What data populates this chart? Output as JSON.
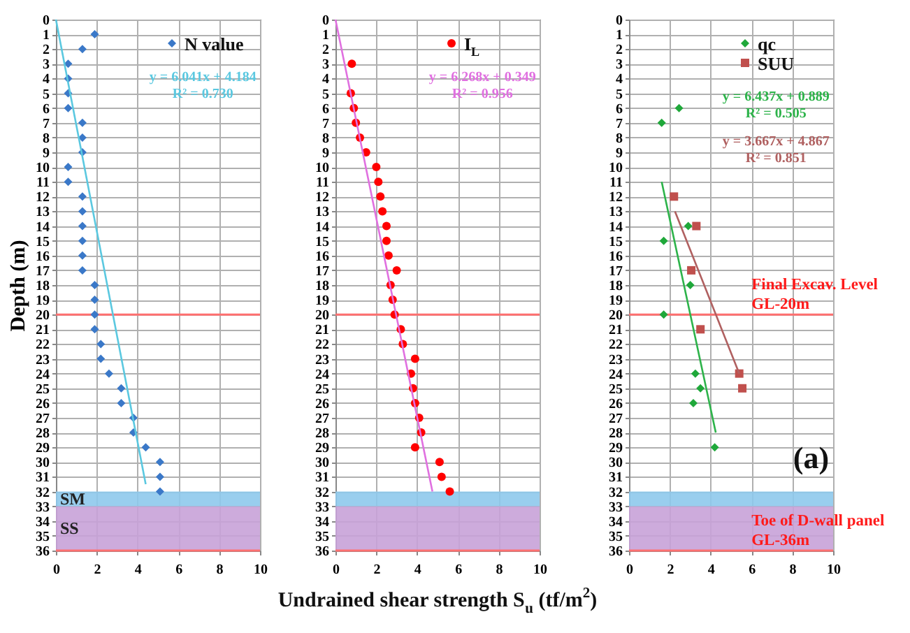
{
  "chart_data": [
    {
      "type": "scatter",
      "ylabel": "Depth (m)",
      "xlim": [
        0,
        10
      ],
      "xticks": [
        0,
        2,
        4,
        6,
        8,
        10
      ],
      "ylim": [
        36,
        0
      ],
      "yticks": [
        0,
        1,
        2,
        3,
        4,
        5,
        6,
        7,
        8,
        9,
        10,
        11,
        12,
        13,
        14,
        15,
        16,
        17,
        18,
        19,
        20,
        21,
        22,
        23,
        24,
        25,
        26,
        27,
        28,
        29,
        30,
        31,
        32,
        33,
        34,
        35,
        36
      ],
      "grid": true,
      "legend": "top right",
      "series": [
        {
          "name": "N value",
          "marker": "diamond",
          "color": "#3a78c8",
          "x": [
            1.9,
            1.3,
            0.6,
            0.6,
            0.6,
            0.6,
            1.3,
            1.3,
            1.3,
            0.6,
            0.6,
            1.3,
            1.3,
            1.3,
            1.3,
            1.3,
            1.3,
            1.9,
            1.9,
            1.9,
            1.9,
            2.2,
            2.2,
            2.6,
            3.2,
            3.2,
            3.8,
            3.8,
            4.4,
            5.1,
            5.1,
            5.1
          ],
          "values": [
            1,
            2,
            3,
            4,
            5,
            6,
            7,
            8,
            9,
            10,
            11,
            12,
            13,
            14,
            15,
            16,
            17,
            18,
            19,
            20,
            21,
            22,
            23,
            24,
            25,
            26,
            27,
            28,
            29,
            30,
            31,
            32
          ]
        },
        {
          "type": "line",
          "marker": "none",
          "color": "#5bc8e0",
          "x": [
            0,
            4.4
          ],
          "values": [
            0,
            31.5
          ]
        }
      ],
      "bands": [
        {
          "axis": "y",
          "from": 32,
          "to": 33,
          "label": "SM",
          "color": "#8ec9ec"
        },
        {
          "axis": "y",
          "from": 33,
          "to": 36,
          "label": "SS",
          "color": "#c8a2d8"
        }
      ],
      "ref_lines": [
        {
          "axis": "y",
          "value": 20,
          "color": "#ff7070"
        },
        {
          "axis": "y",
          "value": 36,
          "color": "#ff7070"
        }
      ],
      "annotations": [
        "y = 6.041x + 4.184",
        "R² = 0.730"
      ]
    },
    {
      "type": "scatter",
      "xlabel": "Undrained shear strength S$_{u}$ (tf/m$^{2}$)",
      "xlim": [
        0,
        10
      ],
      "xticks": [
        0,
        2,
        4,
        6,
        8,
        10
      ],
      "ylim": [
        36,
        0
      ],
      "yticks": [
        0,
        1,
        2,
        3,
        4,
        5,
        6,
        7,
        8,
        9,
        10,
        11,
        12,
        13,
        14,
        15,
        16,
        17,
        18,
        19,
        20,
        21,
        22,
        23,
        24,
        25,
        26,
        27,
        28,
        29,
        30,
        31,
        32,
        33,
        34,
        35,
        36
      ],
      "grid": true,
      "legend": "top right",
      "series": [
        {
          "name": "I$_{L}$",
          "marker": "circle",
          "color": "#ff0000",
          "x": [
            0.8,
            0.75,
            0.9,
            1.0,
            1.2,
            1.5,
            2.0,
            2.1,
            2.2,
            2.3,
            2.5,
            2.5,
            2.6,
            3.0,
            2.7,
            2.8,
            2.9,
            3.2,
            3.3,
            3.9,
            3.7,
            3.8,
            3.9,
            4.1,
            4.2,
            3.9,
            5.1,
            5.2,
            5.6
          ],
          "values": [
            3,
            5,
            6,
            7,
            8,
            9,
            10,
            11,
            12,
            13,
            14,
            15,
            16,
            17,
            18,
            19,
            20,
            21,
            22,
            23,
            24,
            25,
            26,
            27,
            28,
            29,
            30,
            31,
            32
          ]
        },
        {
          "type": "line",
          "marker": "none",
          "color": "#e070e0",
          "x": [
            0,
            4.75
          ],
          "values": [
            0,
            32
          ]
        }
      ],
      "bands": [
        {
          "axis": "y",
          "from": 32,
          "to": 33,
          "color": "#8ec9ec"
        },
        {
          "axis": "y",
          "from": 33,
          "to": 36,
          "color": "#c8a2d8"
        }
      ],
      "ref_lines": [
        {
          "axis": "y",
          "value": 20,
          "color": "#ff7070"
        },
        {
          "axis": "y",
          "value": 36,
          "color": "#ff7070"
        }
      ],
      "annotations": [
        "y = 6.268x + 0.349",
        "R² = 0.956"
      ]
    },
    {
      "type": "scatter",
      "xlim": [
        0,
        10
      ],
      "xticks": [
        0,
        2,
        4,
        6,
        8,
        10
      ],
      "ylim": [
        36,
        0
      ],
      "yticks": [
        0,
        1,
        2,
        3,
        4,
        5,
        6,
        7,
        8,
        9,
        10,
        11,
        12,
        13,
        14,
        15,
        16,
        17,
        18,
        19,
        20,
        21,
        22,
        23,
        24,
        25,
        26,
        27,
        28,
        29,
        30,
        31,
        32,
        33,
        34,
        35,
        36
      ],
      "grid": true,
      "legend": "top right",
      "series": [
        {
          "name": "qc",
          "marker": "diamond",
          "color": "#1fa83a",
          "x": [
            2.45,
            1.6,
            2.9,
            1.7,
            3.0,
            1.7,
            3.25,
            3.5,
            3.15,
            4.2
          ],
          "values": [
            6,
            7,
            14,
            15,
            18,
            20,
            24,
            25,
            26,
            29
          ]
        },
        {
          "name": "SUU",
          "marker": "square",
          "color": "#c0504d",
          "x": [
            2.2,
            3.3,
            3.05,
            3.5,
            5.4,
            5.55
          ],
          "values": [
            12,
            14,
            17,
            21,
            24,
            25
          ]
        },
        {
          "type": "line",
          "marker": "none",
          "color": "#2db34a",
          "x": [
            1.6,
            4.25
          ],
          "values": [
            11,
            28
          ]
        },
        {
          "type": "line",
          "marker": "none",
          "color": "#b06060",
          "x": [
            2.25,
            5.4
          ],
          "values": [
            13,
            24
          ]
        }
      ],
      "bands": [
        {
          "axis": "y",
          "from": 32,
          "to": 33,
          "color": "#8ec9ec"
        },
        {
          "axis": "y",
          "from": 33,
          "to": 36,
          "color": "#c8a2d8"
        }
      ],
      "ref_lines": [
        {
          "axis": "y",
          "value": 20,
          "color": "#ff7070",
          "label": "Final Excav. Level\nGL-20m"
        },
        {
          "axis": "y",
          "value": 36,
          "color": "#ff7070",
          "label": "Toe of D-wall panel\nGL-36m"
        }
      ],
      "annotations": [
        "y = 6.437x + 0.889",
        "R² = 0.505",
        "y = 3.667x + 4.867",
        "R² = 0.851",
        "(a)"
      ]
    }
  ]
}
